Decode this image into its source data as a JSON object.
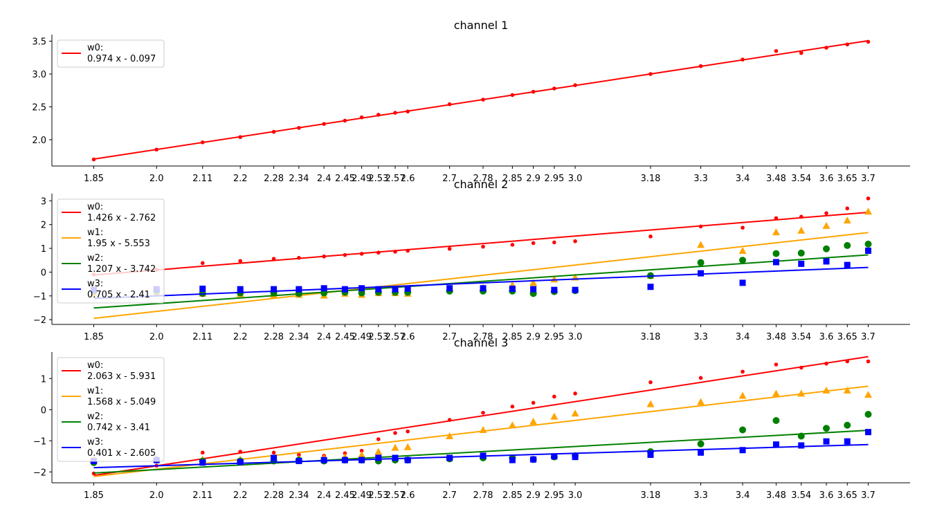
{
  "chart_data": [
    {
      "type": "scatter",
      "title": "channel 1",
      "x": [
        1.85,
        2.0,
        2.11,
        2.2,
        2.28,
        2.34,
        2.4,
        2.45,
        2.49,
        2.53,
        2.57,
        2.6,
        2.7,
        2.78,
        2.85,
        2.9,
        2.95,
        3.0,
        3.18,
        3.3,
        3.4,
        3.48,
        3.54,
        3.6,
        3.65,
        3.7
      ],
      "xticklabels": [
        "1.85",
        "2.0",
        "2.11",
        "2.2",
        "2.28",
        "2.34",
        "2.4",
        "2.45",
        "2.49",
        "2.53",
        "2.57",
        "2.6",
        "2.7",
        "2.78",
        "2.85",
        "2.9",
        "2.95",
        "3.0",
        "3.18",
        "3.3",
        "3.4",
        "3.48",
        "3.54",
        "3.6",
        "3.65",
        "3.7"
      ],
      "xlim": [
        1.75,
        3.8
      ],
      "ylim": [
        1.6,
        3.6
      ],
      "yticks": [
        "2.0",
        "2.5",
        "3.0",
        "3.5"
      ],
      "legend_position": "upper-left",
      "series": [
        {
          "name": "w0:",
          "fit_label": "0.974 x - 0.097",
          "color": "#ff0000",
          "marker": "dot",
          "slope": 0.974,
          "intercept": -0.097,
          "y": [
            1.7,
            1.85,
            1.96,
            2.04,
            2.12,
            2.18,
            2.24,
            2.29,
            2.34,
            2.38,
            2.41,
            2.43,
            2.54,
            2.61,
            2.68,
            2.73,
            2.78,
            2.83,
            3.0,
            3.12,
            3.22,
            3.35,
            3.32,
            3.4,
            3.45,
            3.49
          ]
        }
      ]
    },
    {
      "type": "scatter",
      "title": "channel 2",
      "x": [
        1.85,
        2.0,
        2.11,
        2.2,
        2.28,
        2.34,
        2.4,
        2.45,
        2.49,
        2.53,
        2.57,
        2.6,
        2.7,
        2.78,
        2.85,
        2.9,
        2.95,
        3.0,
        3.18,
        3.3,
        3.4,
        3.48,
        3.54,
        3.6,
        3.65,
        3.7
      ],
      "xticklabels": [
        "1.85",
        "2.0",
        "2.11",
        "2.2",
        "2.28",
        "2.34",
        "2.4",
        "2.45",
        "2.49",
        "2.53",
        "2.57",
        "2.6",
        "2.7",
        "2.78",
        "2.85",
        "2.9",
        "2.95",
        "3.0",
        "3.18",
        "3.3",
        "3.4",
        "3.48",
        "3.54",
        "3.6",
        "3.65",
        "3.7"
      ],
      "xlim": [
        1.75,
        3.8
      ],
      "ylim": [
        -2.2,
        3.3
      ],
      "yticks": [
        "−2",
        "−1",
        "0",
        "1",
        "2",
        "3"
      ],
      "legend_position": "upper-left",
      "series": [
        {
          "name": "w0:",
          "fit_label": "1.426 x - 2.762",
          "color": "#ff0000",
          "marker": "dot",
          "slope": 1.426,
          "intercept": -2.762,
          "y": [
            -0.1,
            0.1,
            0.38,
            0.47,
            0.56,
            0.6,
            0.66,
            0.72,
            0.77,
            0.82,
            0.86,
            0.9,
            0.98,
            1.07,
            1.15,
            1.22,
            1.25,
            1.3,
            1.5,
            1.92,
            1.87,
            2.27,
            2.33,
            2.48,
            2.68,
            3.1
          ]
        },
        {
          "name": "w1:",
          "fit_label": "1.95 x - 5.553",
          "color": "#ffa500",
          "marker": "triangle",
          "slope": 1.95,
          "intercept": -5.553,
          "y": [
            -0.9,
            -0.85,
            -0.9,
            -0.92,
            -0.95,
            -0.95,
            -0.98,
            -0.9,
            -0.95,
            -0.88,
            -0.88,
            -0.9,
            -0.7,
            -0.65,
            -0.55,
            -0.45,
            -0.3,
            -0.22,
            -0.15,
            1.15,
            0.9,
            1.68,
            1.75,
            1.95,
            2.18,
            2.55
          ]
        },
        {
          "name": "w2:",
          "fit_label": "1.207 x - 3.742",
          "color": "#008000",
          "marker": "circle",
          "slope": 1.207,
          "intercept": -3.742,
          "y": [
            -0.8,
            -0.8,
            -0.9,
            -0.88,
            -0.88,
            -0.9,
            -0.88,
            -0.85,
            -0.88,
            -0.85,
            -0.85,
            -0.85,
            -0.8,
            -0.8,
            -0.8,
            -0.9,
            -0.82,
            -0.78,
            -0.15,
            0.4,
            0.5,
            0.78,
            0.8,
            0.98,
            1.12,
            1.18
          ]
        },
        {
          "name": "w3:",
          "fit_label": "0.705 x - 2.41",
          "color": "#0000ff",
          "marker": "square",
          "slope": 0.705,
          "intercept": -2.41,
          "y": [
            -0.75,
            -0.72,
            -0.7,
            -0.72,
            -0.72,
            -0.72,
            -0.68,
            -0.72,
            -0.68,
            -0.72,
            -0.72,
            -0.7,
            -0.68,
            -0.68,
            -0.7,
            -0.72,
            -0.75,
            -0.75,
            -0.62,
            -0.05,
            -0.45,
            0.42,
            0.35,
            0.45,
            0.3,
            0.9
          ]
        }
      ]
    },
    {
      "type": "scatter",
      "title": "channel 3",
      "x": [
        1.85,
        2.0,
        2.11,
        2.2,
        2.28,
        2.34,
        2.4,
        2.45,
        2.49,
        2.53,
        2.57,
        2.6,
        2.7,
        2.78,
        2.85,
        2.9,
        2.95,
        3.0,
        3.18,
        3.3,
        3.4,
        3.48,
        3.54,
        3.6,
        3.65,
        3.7
      ],
      "xticklabels": [
        "1.85",
        "2.0",
        "2.11",
        "2.2",
        "2.28",
        "2.34",
        "2.4",
        "2.45",
        "2.49",
        "2.53",
        "2.57",
        "2.6",
        "2.7",
        "2.78",
        "2.85",
        "2.9",
        "2.95",
        "3.0",
        "3.18",
        "3.3",
        "3.4",
        "3.48",
        "3.54",
        "3.6",
        "3.65",
        "3.7"
      ],
      "xlim": [
        1.75,
        3.8
      ],
      "ylim": [
        -2.35,
        1.85
      ],
      "yticks": [
        "−2",
        "−1",
        "0",
        "1"
      ],
      "legend_position": "upper-left",
      "series": [
        {
          "name": "w0:",
          "fit_label": "2.063 x - 5.931",
          "color": "#ff0000",
          "marker": "dot",
          "slope": 2.063,
          "intercept": -5.931,
          "y": [
            -2.05,
            -1.8,
            -1.38,
            -1.35,
            -1.38,
            -1.45,
            -1.48,
            -1.4,
            -1.32,
            -0.95,
            -0.75,
            -0.7,
            -0.33,
            -0.1,
            0.1,
            0.22,
            0.42,
            0.52,
            0.88,
            1.02,
            1.22,
            1.45,
            1.35,
            1.48,
            1.55,
            1.55
          ]
        },
        {
          "name": "w1:",
          "fit_label": "1.568 x - 5.049",
          "color": "#ffa500",
          "marker": "triangle",
          "slope": 1.568,
          "intercept": -5.049,
          "y": [
            -1.6,
            -1.55,
            -1.6,
            -1.6,
            -1.62,
            -1.58,
            -1.55,
            -1.52,
            -1.45,
            -1.35,
            -1.22,
            -1.2,
            -0.85,
            -0.65,
            -0.5,
            -0.38,
            -0.22,
            -0.12,
            0.18,
            0.25,
            0.45,
            0.52,
            0.52,
            0.62,
            0.62,
            0.48
          ]
        },
        {
          "name": "w2:",
          "fit_label": "0.742 x - 3.41",
          "color": "#008000",
          "marker": "circle",
          "slope": 0.742,
          "intercept": -3.41,
          "y": [
            -1.7,
            -1.62,
            -1.65,
            -1.65,
            -1.65,
            -1.62,
            -1.65,
            -1.62,
            -1.62,
            -1.65,
            -1.62,
            -1.62,
            -1.58,
            -1.55,
            -1.55,
            -1.6,
            -1.52,
            -1.48,
            -1.35,
            -1.1,
            -0.65,
            -0.35,
            -0.85,
            -0.6,
            -0.5,
            -0.15
          ]
        },
        {
          "name": "w3:",
          "fit_label": "0.401 x - 2.605",
          "color": "#0000ff",
          "marker": "square",
          "slope": 0.401,
          "intercept": -2.605,
          "y": [
            -1.65,
            -1.62,
            -1.7,
            -1.68,
            -1.55,
            -1.65,
            -1.62,
            -1.62,
            -1.62,
            -1.55,
            -1.55,
            -1.62,
            -1.55,
            -1.48,
            -1.62,
            -1.6,
            -1.5,
            -1.52,
            -1.45,
            -1.38,
            -1.3,
            -1.12,
            -1.15,
            -1.02,
            -1.02,
            -0.72
          ]
        }
      ]
    }
  ]
}
